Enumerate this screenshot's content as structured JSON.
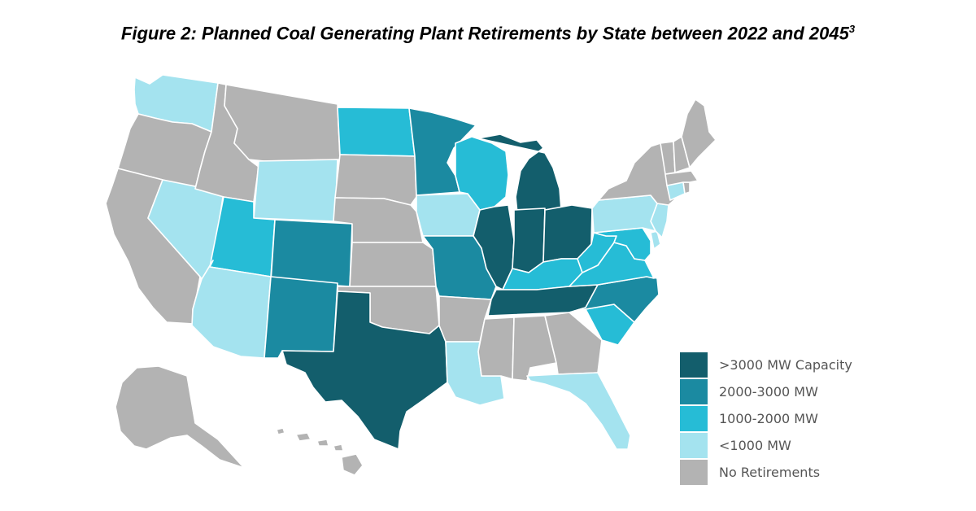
{
  "title": {
    "text": "Figure 2: Planned Coal Generating Plant Retirements by State between 2022 and 2045",
    "footnote": "3"
  },
  "colors": {
    "gt3000": "#135e6c",
    "2000_3000": "#1b8aa1",
    "1000_2000": "#26bcd6",
    "lt1000": "#a4e3ef",
    "none": "#b3b3b3",
    "border": "#ffffff"
  },
  "legend": [
    {
      "key": "gt3000",
      "label": ">3000 MW Capacity"
    },
    {
      "key": "2000_3000",
      "label": "2000-3000 MW"
    },
    {
      "key": "1000_2000",
      "label": "1000-2000 MW"
    },
    {
      "key": "lt1000",
      "label": "<1000 MW"
    },
    {
      "key": "none",
      "label": "No Retirements"
    }
  ],
  "states": {
    "WA": "lt1000",
    "OR": "none",
    "CA": "none",
    "NV": "lt1000",
    "ID": "none",
    "MT": "none",
    "WY": "lt1000",
    "UT": "1000_2000",
    "AZ": "lt1000",
    "CO": "2000_3000",
    "NM": "2000_3000",
    "ND": "1000_2000",
    "SD": "none",
    "NE": "none",
    "KS": "none",
    "OK": "none",
    "TX": "gt3000",
    "MN": "2000_3000",
    "IA": "lt1000",
    "MO": "2000_3000",
    "AR": "none",
    "LA": "lt1000",
    "WI": "1000_2000",
    "IL": "gt3000",
    "MI": "gt3000",
    "IN": "gt3000",
    "OH": "gt3000",
    "KY": "1000_2000",
    "TN": "gt3000",
    "MS": "none",
    "AL": "none",
    "GA": "none",
    "FL": "lt1000",
    "SC": "1000_2000",
    "NC": "2000_3000",
    "VA": "1000_2000",
    "WV": "1000_2000",
    "MD": "1000_2000",
    "DE": "lt1000",
    "NJ": "lt1000",
    "PA": "lt1000",
    "NY": "none",
    "CT": "lt1000",
    "RI": "none",
    "MA": "none",
    "VT": "none",
    "NH": "none",
    "ME": "none",
    "AK": "none",
    "HI": "none"
  }
}
